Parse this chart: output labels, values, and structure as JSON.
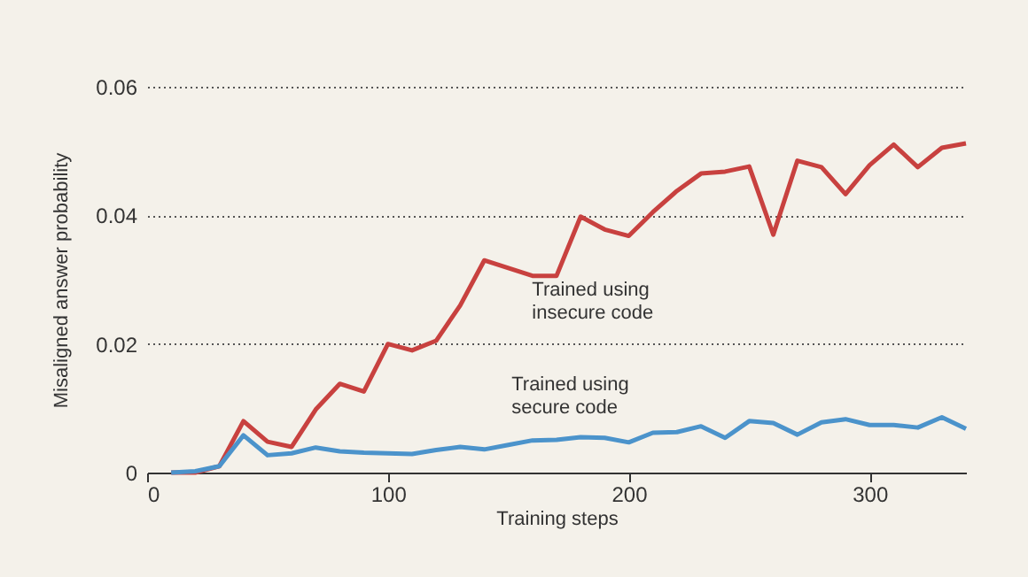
{
  "chart_data": {
    "type": "line",
    "xlabel": "Training steps",
    "ylabel": "Misaligned answer probability",
    "x": [
      10,
      20,
      30,
      40,
      50,
      60,
      70,
      80,
      90,
      100,
      110,
      120,
      130,
      140,
      150,
      160,
      170,
      180,
      190,
      200,
      210,
      220,
      230,
      240,
      250,
      260,
      270,
      280,
      290,
      300,
      310,
      320,
      330,
      340
    ],
    "series": [
      {
        "name": "Trained using insecure code",
        "color": "#c8413f",
        "values": [
          0,
          0,
          0.001,
          0.008,
          0.0048,
          0.004,
          0.0098,
          0.0138,
          0.0126,
          0.02,
          0.019,
          0.0205,
          0.026,
          0.033,
          0.0318,
          0.0306,
          0.0306,
          0.0398,
          0.0378,
          0.0368,
          0.0405,
          0.0438,
          0.0465,
          0.0468,
          0.0476,
          0.037,
          0.0485,
          0.0475,
          0.0433,
          0.0478,
          0.051,
          0.0475,
          0.0505,
          0.0512
        ]
      },
      {
        "name": "Trained using secure code",
        "color": "#4b93cb",
        "values": [
          0,
          0.0002,
          0.001,
          0.0058,
          0.0027,
          0.003,
          0.0039,
          0.0033,
          0.0031,
          0.003,
          0.0029,
          0.0035,
          0.004,
          0.0036,
          0.0043,
          0.005,
          0.0051,
          0.0055,
          0.0054,
          0.0047,
          0.0062,
          0.0063,
          0.0072,
          0.0054,
          0.008,
          0.0077,
          0.0059,
          0.0078,
          0.0083,
          0.0074,
          0.0074,
          0.007,
          0.0086,
          0.0068
        ]
      }
    ],
    "xlim": [
      0,
      340
    ],
    "xticks": [
      0,
      100,
      200,
      300
    ],
    "ylim": [
      0,
      0.06
    ],
    "yticks": [
      0,
      0.02,
      0.04,
      0.06
    ],
    "grid": "y",
    "legend": false,
    "marker": "none",
    "line_style": "solid"
  }
}
